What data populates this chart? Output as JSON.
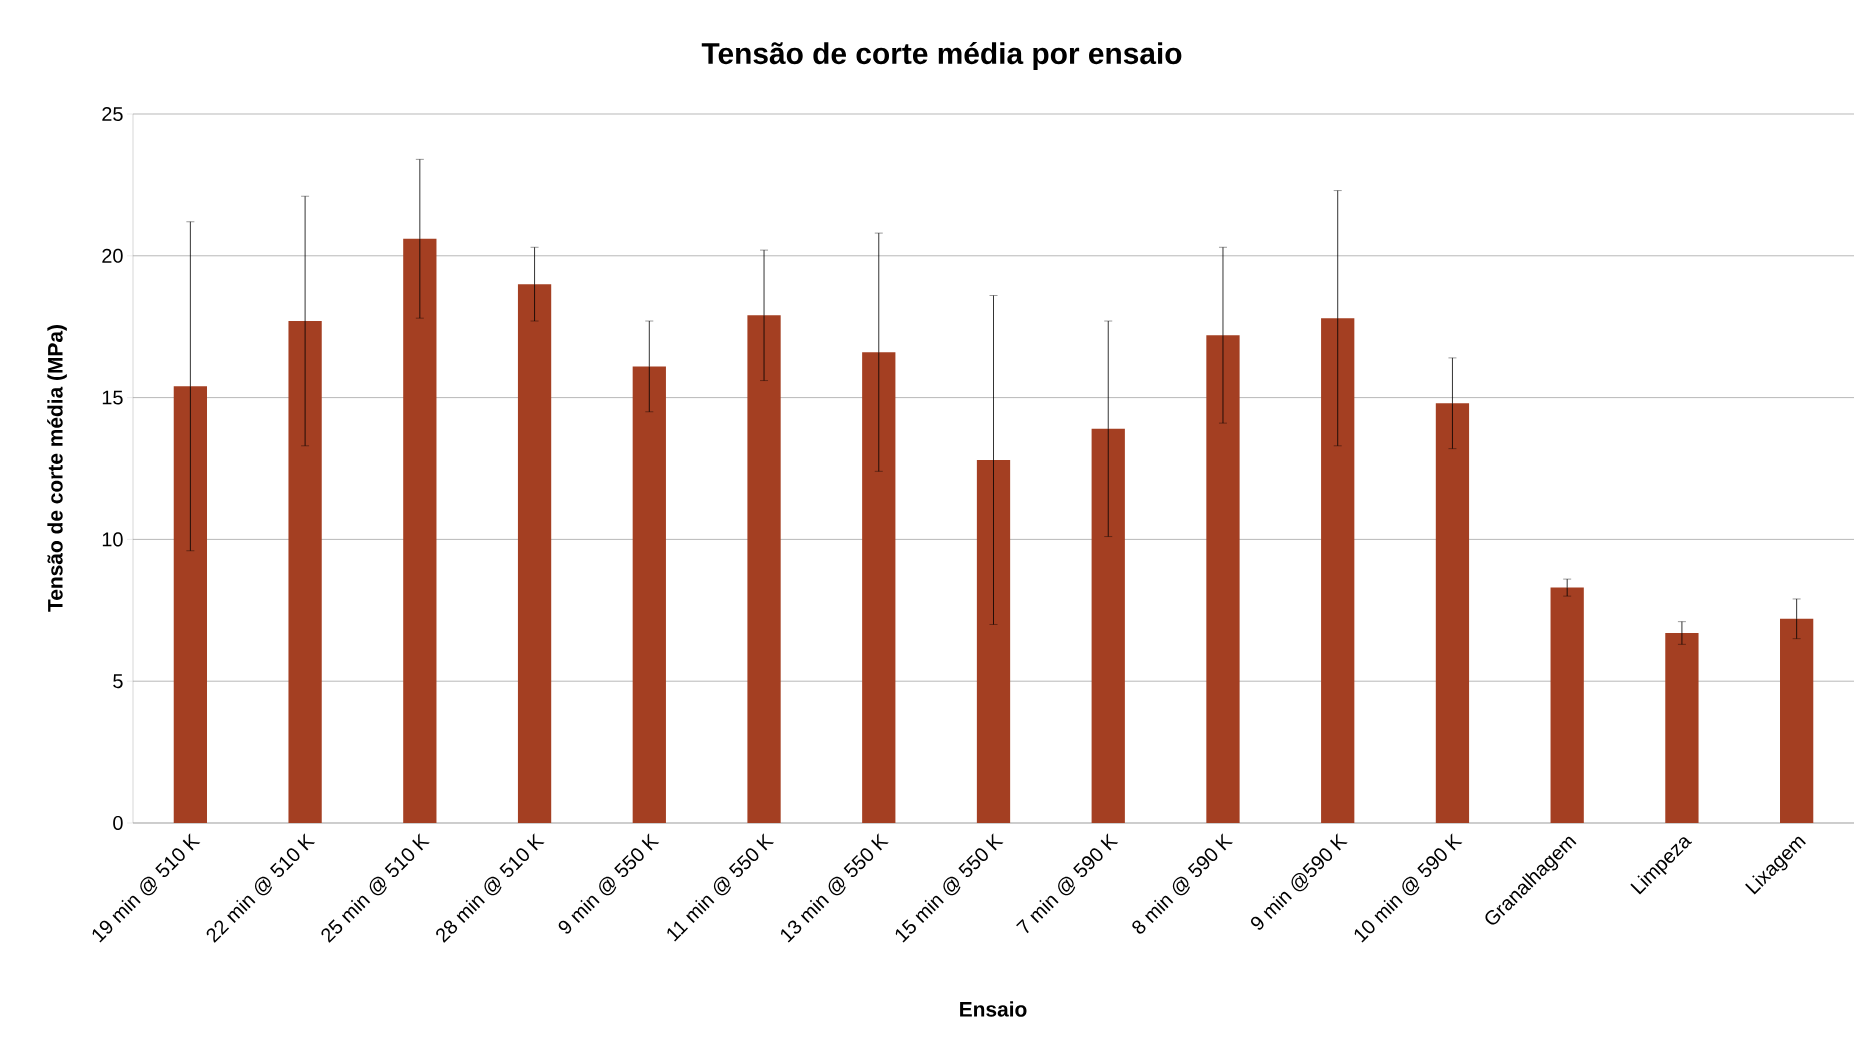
{
  "chart_data": {
    "type": "bar",
    "title": "Tensão de corte média por ensaio",
    "xlabel": "Ensaio",
    "ylabel": "Tensão de corte média (MPa)",
    "categories": [
      "19 min @ 510 K",
      "22 min @ 510 K",
      "25 min @ 510 K",
      "28 min @ 510 K",
      "9 min @ 550 K",
      "11 min @ 550 K",
      "13 min @ 550 K",
      "15 min @ 550 K",
      "7 min @ 590 K",
      "8 min @ 590 K",
      "9 min @590 K",
      "10 min @ 590 K",
      "Granalhagem",
      "Limpeza",
      "Lixagem"
    ],
    "values": [
      15.4,
      17.7,
      20.6,
      19.0,
      16.1,
      17.9,
      16.6,
      12.8,
      13.9,
      17.2,
      17.8,
      14.8,
      8.3,
      6.7,
      7.2
    ],
    "errors": [
      5.8,
      4.4,
      2.8,
      1.3,
      1.6,
      2.3,
      4.2,
      5.8,
      3.8,
      3.1,
      4.5,
      1.6,
      0.3,
      0.4,
      0.7
    ],
    "color": "#a43f22",
    "ylim": [
      0,
      25
    ],
    "yticks": [
      0,
      5,
      10,
      15,
      20,
      25
    ],
    "grid": "y"
  }
}
